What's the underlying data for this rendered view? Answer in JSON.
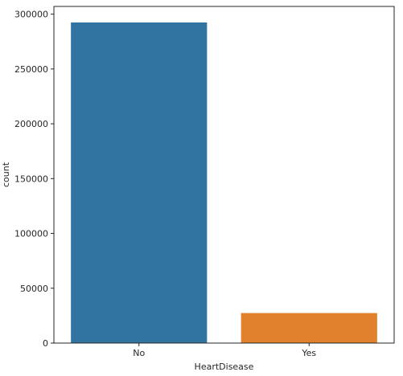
{
  "chart_data": {
    "type": "bar",
    "categories": [
      "No",
      "Yes"
    ],
    "values": [
      292422,
      27373
    ],
    "colors": [
      "#3274a1",
      "#e1812c"
    ],
    "xlabel": "HeartDisease",
    "ylabel": "count",
    "ylim": [
      0,
      307043
    ],
    "yticks": [
      0,
      50000,
      100000,
      150000,
      200000,
      250000,
      300000
    ],
    "grid": false,
    "legend": "none"
  }
}
